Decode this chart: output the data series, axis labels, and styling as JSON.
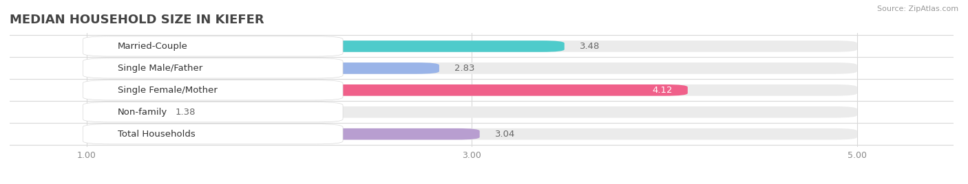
{
  "title": "MEDIAN HOUSEHOLD SIZE IN KIEFER",
  "source": "Source: ZipAtlas.com",
  "categories": [
    "Married-Couple",
    "Single Male/Father",
    "Single Female/Mother",
    "Non-family",
    "Total Households"
  ],
  "values": [
    3.48,
    2.83,
    4.12,
    1.38,
    3.04
  ],
  "bar_colors": [
    "#4ecbcb",
    "#9ab4e8",
    "#f0608a",
    "#f5c89a",
    "#b89ed0"
  ],
  "xlim_min": 0.6,
  "xlim_max": 5.5,
  "data_min": 1.0,
  "data_max": 5.0,
  "xticks": [
    1.0,
    3.0,
    5.0
  ],
  "xtick_labels": [
    "1.00",
    "3.00",
    "5.00"
  ],
  "bar_height": 0.52,
  "label_fontsize": 9.5,
  "value_fontsize": 9.5,
  "title_fontsize": 13,
  "background_color": "#ffffff",
  "bar_bg_color": "#ebebeb",
  "label_bg_color": "#ffffff",
  "grid_color": "#d8d8d8",
  "value_inside_color": "#ffffff",
  "value_outside_color": "#666666"
}
